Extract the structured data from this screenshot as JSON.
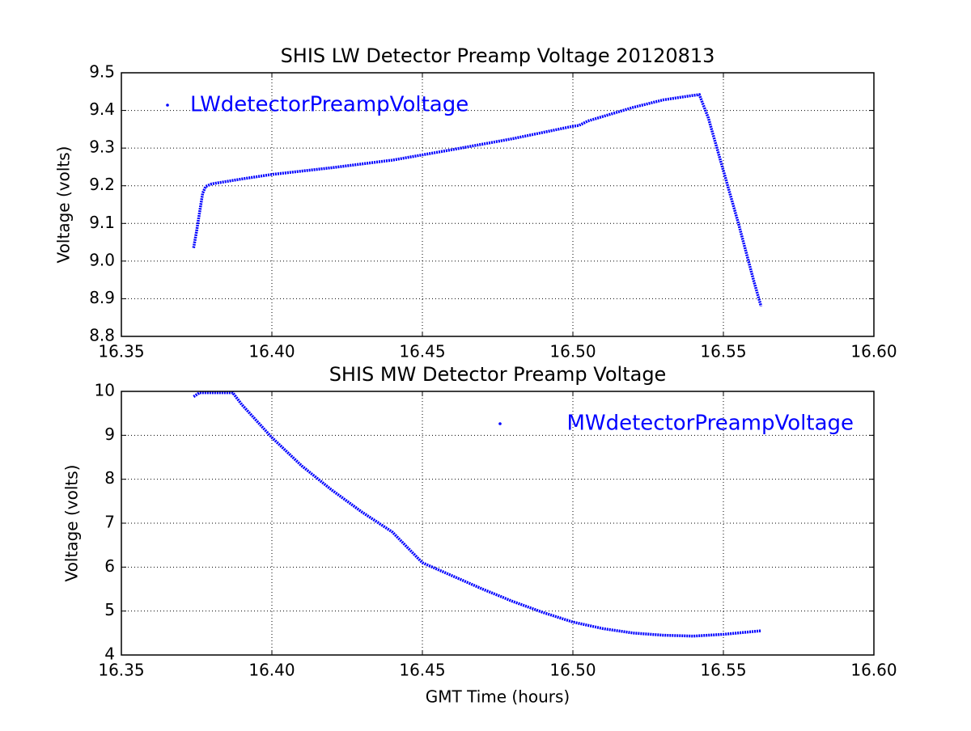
{
  "chart_data": [
    {
      "type": "line",
      "title": "SHIS LW Detector Preamp Voltage 20120813",
      "ylabel": "Voltage (volts)",
      "x": [
        16.374,
        16.375,
        16.376,
        16.377,
        16.378,
        16.38,
        16.39,
        16.4,
        16.42,
        16.44,
        16.45,
        16.46,
        16.48,
        16.5,
        16.502,
        16.505,
        16.52,
        16.53,
        16.54,
        16.542,
        16.545,
        16.55,
        16.555,
        16.56,
        16.5625
      ],
      "series": [
        {
          "name": "LWdetectorPreampVoltage",
          "color": "#0000ff",
          "values": [
            9.035,
            9.08,
            9.13,
            9.18,
            9.198,
            9.205,
            9.218,
            9.23,
            9.248,
            9.268,
            9.282,
            9.296,
            9.325,
            9.358,
            9.36,
            9.372,
            9.408,
            9.428,
            9.44,
            9.442,
            9.38,
            9.24,
            9.1,
            8.95,
            8.88
          ]
        }
      ],
      "xlim": [
        16.35,
        16.6
      ],
      "xticks": [
        16.35,
        {
          "value": 16.4,
          "label": "16.40"
        },
        16.45,
        {
          "value": 16.5,
          "label": "16.50"
        },
        16.55,
        {
          "value": 16.6,
          "label": "16.60"
        }
      ],
      "ylim": [
        8.8,
        9.5
      ],
      "yticks": [
        8.8,
        8.9,
        {
          "value": 9,
          "label": "9.0"
        },
        9.1,
        9.2,
        9.3,
        9.4,
        9.5
      ],
      "grid": true,
      "legend": "upper left"
    },
    {
      "type": "line",
      "title": "SHIS MW Detector Preamp Voltage",
      "ylabel": "Voltage (volts)",
      "xlabel": "GMT Time (hours)",
      "x": [
        16.374,
        16.376,
        16.38,
        16.387,
        16.39,
        16.4,
        16.41,
        16.42,
        16.43,
        16.44,
        16.45,
        16.46,
        16.47,
        16.48,
        16.49,
        16.5,
        16.51,
        16.52,
        16.53,
        16.54,
        16.55,
        16.5625
      ],
      "series": [
        {
          "name": "MWdetectorPreampVoltage",
          "color": "#0000ff",
          "values": [
            9.88,
            9.97,
            9.97,
            9.97,
            9.7,
            8.95,
            8.3,
            7.75,
            7.25,
            6.8,
            6.1,
            5.8,
            5.5,
            5.22,
            4.97,
            4.75,
            4.6,
            4.5,
            4.45,
            4.43,
            4.47,
            4.55
          ]
        }
      ],
      "xlim": [
        16.35,
        16.6
      ],
      "xticks": [
        16.35,
        {
          "value": 16.4,
          "label": "16.40"
        },
        16.45,
        {
          "value": 16.5,
          "label": "16.50"
        },
        16.55,
        {
          "value": 16.6,
          "label": "16.60"
        }
      ],
      "ylim": [
        4,
        10
      ],
      "yticks": [
        4,
        5,
        6,
        7,
        8,
        9,
        10
      ],
      "grid": true,
      "legend": "upper right"
    }
  ]
}
